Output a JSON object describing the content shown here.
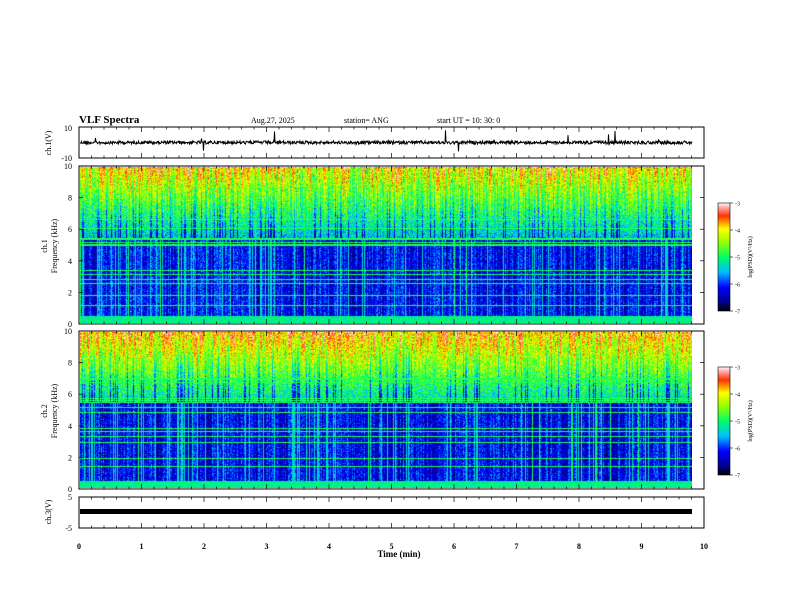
{
  "header": {
    "title": "VLF Spectra",
    "date": "Aug.27, 2025",
    "station": "station= ANG",
    "start": "start  UT =   10: 30: 0"
  },
  "chart_data": [
    {
      "type": "line",
      "name": "ch1-waveform",
      "ylabel": "ch.1(V)",
      "ylim": [
        -10,
        10
      ],
      "yticks": [
        "10",
        "-10"
      ],
      "xlim": [
        0,
        10
      ],
      "baseline": 0,
      "notes": "noisy signal around 0 V with sporadic spikes"
    },
    {
      "type": "heatmap",
      "name": "ch1-spectrogram",
      "ylabel": "ch.1\nFrequency (kHz)",
      "ylim": [
        0,
        10
      ],
      "yticks": [
        "0",
        "2",
        "4",
        "6",
        "8",
        "10"
      ],
      "xlim": [
        0,
        9.83
      ],
      "colorbar": {
        "label": "log(PSD)(V²/Hz)",
        "range": [
          -7,
          -3
        ],
        "ticks": [
          "-3",
          "-4",
          "-5",
          "-6",
          "-7"
        ]
      }
    },
    {
      "type": "heatmap",
      "name": "ch2-spectrogram",
      "ylabel": "ch.2\nFrequency (kHz)",
      "ylim": [
        0,
        10
      ],
      "yticks": [
        "0",
        "2",
        "4",
        "6",
        "8",
        "10"
      ],
      "xlim": [
        0,
        9.83
      ],
      "colorbar": {
        "label": "log(PSD)(V²/Hz)",
        "range": [
          -7,
          -3
        ],
        "ticks": [
          "-3",
          "-4",
          "-5",
          "-6",
          "-7"
        ]
      }
    },
    {
      "type": "line",
      "name": "ch3-waveform",
      "ylabel": "ch.3(V)",
      "ylim": [
        -5,
        5
      ],
      "yticks": [
        "5",
        "-5"
      ],
      "xlim": [
        0,
        10
      ],
      "baseline": -1.2,
      "notes": "flat thick line"
    }
  ],
  "xaxis": {
    "label": "Time (min)",
    "ticks": [
      "0",
      "1",
      "2",
      "3",
      "4",
      "5",
      "6",
      "7",
      "8",
      "9",
      "10"
    ]
  }
}
